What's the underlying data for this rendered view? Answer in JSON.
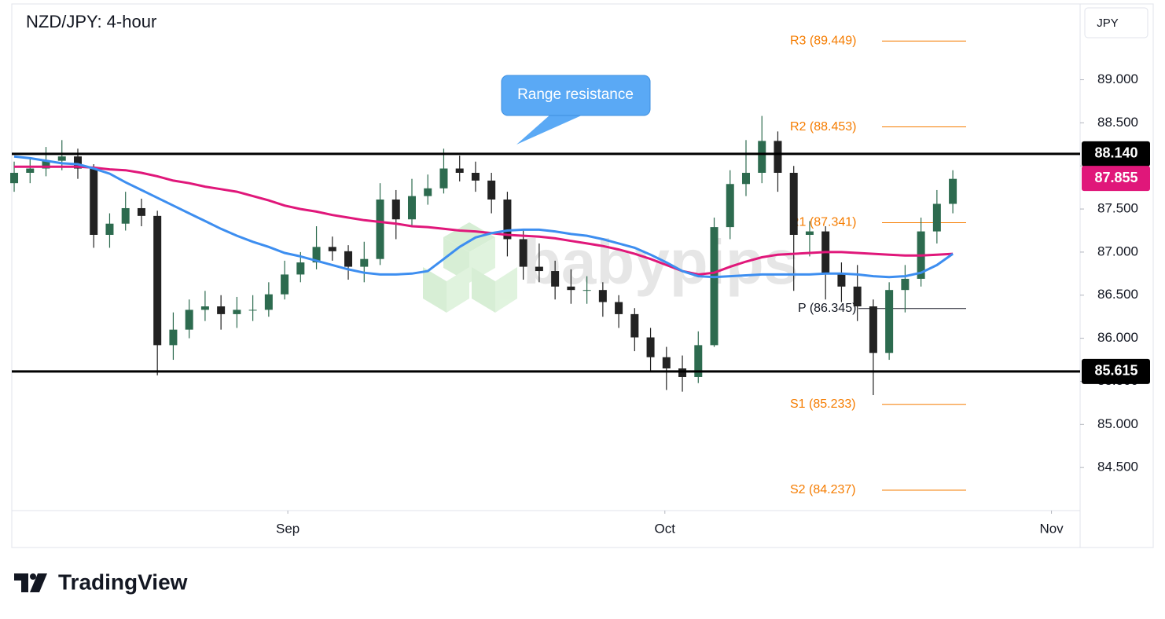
{
  "chart_data": {
    "type": "candlestick",
    "title": "NZD/JPY: 4-hour",
    "currency": "JPY",
    "watermark": "babypips",
    "brand": "TradingView",
    "annotation": "Range resistance",
    "up_color": "#2d6b4f",
    "down_color": "#222222",
    "candles": [
      [
        87.8,
        88.05,
        87.7,
        87.92
      ],
      [
        87.92,
        88.1,
        87.8,
        87.97
      ],
      [
        87.97,
        88.22,
        87.88,
        88.06
      ],
      [
        88.06,
        88.3,
        87.95,
        88.11
      ],
      [
        88.11,
        88.2,
        87.85,
        87.97
      ],
      [
        87.97,
        88.02,
        87.05,
        87.2
      ],
      [
        87.2,
        87.45,
        87.05,
        87.33
      ],
      [
        87.33,
        87.7,
        87.25,
        87.51
      ],
      [
        87.51,
        87.62,
        87.3,
        87.42
      ],
      [
        87.42,
        87.48,
        85.57,
        85.92
      ],
      [
        85.92,
        86.3,
        85.75,
        86.1
      ],
      [
        86.1,
        86.45,
        86.0,
        86.33
      ],
      [
        86.33,
        86.55,
        86.2,
        86.37
      ],
      [
        86.37,
        86.5,
        86.1,
        86.28
      ],
      [
        86.28,
        86.48,
        86.12,
        86.33
      ],
      [
        86.33,
        86.5,
        86.2,
        86.33
      ],
      [
        86.33,
        86.65,
        86.25,
        86.51
      ],
      [
        86.51,
        86.9,
        86.45,
        86.74
      ],
      [
        86.74,
        87.0,
        86.65,
        86.88
      ],
      [
        86.88,
        87.3,
        86.8,
        87.06
      ],
      [
        87.06,
        87.18,
        86.9,
        87.01
      ],
      [
        87.01,
        87.08,
        86.68,
        86.83
      ],
      [
        86.83,
        87.12,
        86.65,
        86.92
      ],
      [
        86.92,
        87.8,
        86.85,
        87.61
      ],
      [
        87.61,
        87.72,
        87.15,
        87.38
      ],
      [
        87.38,
        87.85,
        87.3,
        87.65
      ],
      [
        87.65,
        87.9,
        87.55,
        87.74
      ],
      [
        87.74,
        88.2,
        87.68,
        87.97
      ],
      [
        87.97,
        88.12,
        87.82,
        87.92
      ],
      [
        87.92,
        88.05,
        87.7,
        87.83
      ],
      [
        87.83,
        87.92,
        87.45,
        87.61
      ],
      [
        87.61,
        87.7,
        86.95,
        87.15
      ],
      [
        87.15,
        87.25,
        86.68,
        86.83
      ],
      [
        86.83,
        87.1,
        86.65,
        86.78
      ],
      [
        86.78,
        86.9,
        86.45,
        86.6
      ],
      [
        86.6,
        86.8,
        86.4,
        86.56
      ],
      [
        86.56,
        86.72,
        86.4,
        86.56
      ],
      [
        86.56,
        86.65,
        86.25,
        86.42
      ],
      [
        86.42,
        86.5,
        86.12,
        86.28
      ],
      [
        86.28,
        86.35,
        85.85,
        86.01
      ],
      [
        86.01,
        86.12,
        85.62,
        85.78
      ],
      [
        85.78,
        85.9,
        85.4,
        85.65
      ],
      [
        85.65,
        85.8,
        85.38,
        85.55
      ],
      [
        85.55,
        86.08,
        85.48,
        85.92
      ],
      [
        85.92,
        87.4,
        85.9,
        87.29
      ],
      [
        87.29,
        87.95,
        87.15,
        87.79
      ],
      [
        87.79,
        88.3,
        87.65,
        87.92
      ],
      [
        87.92,
        88.58,
        87.8,
        88.29
      ],
      [
        88.29,
        88.4,
        87.7,
        87.92
      ],
      [
        87.92,
        88.0,
        86.55,
        87.2
      ],
      [
        87.2,
        87.36,
        86.95,
        87.24
      ],
      [
        87.24,
        87.3,
        86.45,
        86.74
      ],
      [
        86.74,
        86.88,
        86.42,
        86.6
      ],
      [
        86.6,
        86.85,
        86.2,
        86.37
      ],
      [
        86.37,
        86.45,
        85.34,
        85.83
      ],
      [
        85.83,
        86.65,
        85.75,
        86.56
      ],
      [
        86.56,
        86.85,
        86.3,
        86.69
      ],
      [
        86.69,
        87.4,
        86.6,
        87.24
      ],
      [
        87.24,
        87.72,
        87.1,
        87.56
      ],
      [
        87.56,
        87.95,
        87.45,
        87.85
      ]
    ],
    "series": [
      {
        "color": "#e0177a",
        "values": [
          87.99,
          87.99,
          87.99,
          87.99,
          87.99,
          87.98,
          87.96,
          87.95,
          87.92,
          87.88,
          87.83,
          87.8,
          87.76,
          87.73,
          87.7,
          87.65,
          87.6,
          87.54,
          87.5,
          87.47,
          87.43,
          87.4,
          87.37,
          87.35,
          87.33,
          87.3,
          87.29,
          87.27,
          87.25,
          87.24,
          87.22,
          87.2,
          87.19,
          87.18,
          87.16,
          87.13,
          87.1,
          87.07,
          87.03,
          86.98,
          86.92,
          86.85,
          86.78,
          86.74,
          86.76,
          86.83,
          86.89,
          86.94,
          86.97,
          86.98,
          86.99,
          87.0,
          87.0,
          86.99,
          86.98,
          86.97,
          86.96,
          86.96,
          86.97,
          86.98
        ]
      },
      {
        "color": "#3d8ef0",
        "values": [
          88.11,
          88.09,
          88.06,
          88.03,
          88.02,
          87.97,
          87.91,
          87.81,
          87.72,
          87.63,
          87.54,
          87.45,
          87.36,
          87.27,
          87.19,
          87.12,
          87.06,
          86.99,
          86.95,
          86.9,
          86.85,
          86.8,
          86.76,
          86.74,
          86.74,
          86.75,
          86.78,
          86.92,
          87.06,
          87.17,
          87.22,
          87.25,
          87.26,
          87.26,
          87.24,
          87.21,
          87.19,
          87.15,
          87.1,
          87.05,
          86.97,
          86.88,
          86.78,
          86.72,
          86.71,
          86.72,
          86.73,
          86.74,
          86.74,
          86.74,
          86.74,
          86.75,
          86.75,
          86.74,
          86.72,
          86.71,
          86.72,
          86.76,
          86.85,
          86.98
        ]
      }
    ],
    "hlines": [
      {
        "value": 88.14,
        "label": "88.140"
      },
      {
        "value": 85.615,
        "label": "85.615"
      }
    ],
    "last_price": {
      "value": 87.855,
      "color": "#e0177a"
    },
    "pivots": [
      {
        "value": 89.449,
        "label": "R3 (89.449)"
      },
      {
        "value": 88.453,
        "label": "R2 (88.453)"
      },
      {
        "value": 87.341,
        "label": "R1 (87.341)"
      },
      {
        "value": 86.345,
        "label": "P (86.345)"
      },
      {
        "value": 85.233,
        "label": "S1 (85.233)"
      },
      {
        "value": 84.237,
        "label": "S2 (84.237)"
      }
    ],
    "pivot_color": "#f57c00",
    "xlim": [
      -0.15,
      67.0
    ],
    "xticks": [
      {
        "value": 17.2,
        "label": "Sep"
      },
      {
        "value": 40.9,
        "label": "Oct"
      },
      {
        "value": 65.2,
        "label": "Nov"
      }
    ],
    "ylim": [
      84.0,
      89.88
    ],
    "yticks": [
      {
        "value": 84.5,
        "label": "84.500"
      },
      {
        "value": 85,
        "label": "85.000"
      },
      {
        "value": 85.5,
        "label": "85.500"
      },
      {
        "value": 86,
        "label": "86.000"
      },
      {
        "value": 86.5,
        "label": "86.500"
      },
      {
        "value": 87,
        "label": "87.000"
      },
      {
        "value": 87.5,
        "label": "87.500"
      },
      {
        "value": 88,
        "label": "88.000"
      },
      {
        "value": 88.5,
        "label": "88.500"
      },
      {
        "value": 89,
        "label": "89.000"
      }
    ]
  }
}
